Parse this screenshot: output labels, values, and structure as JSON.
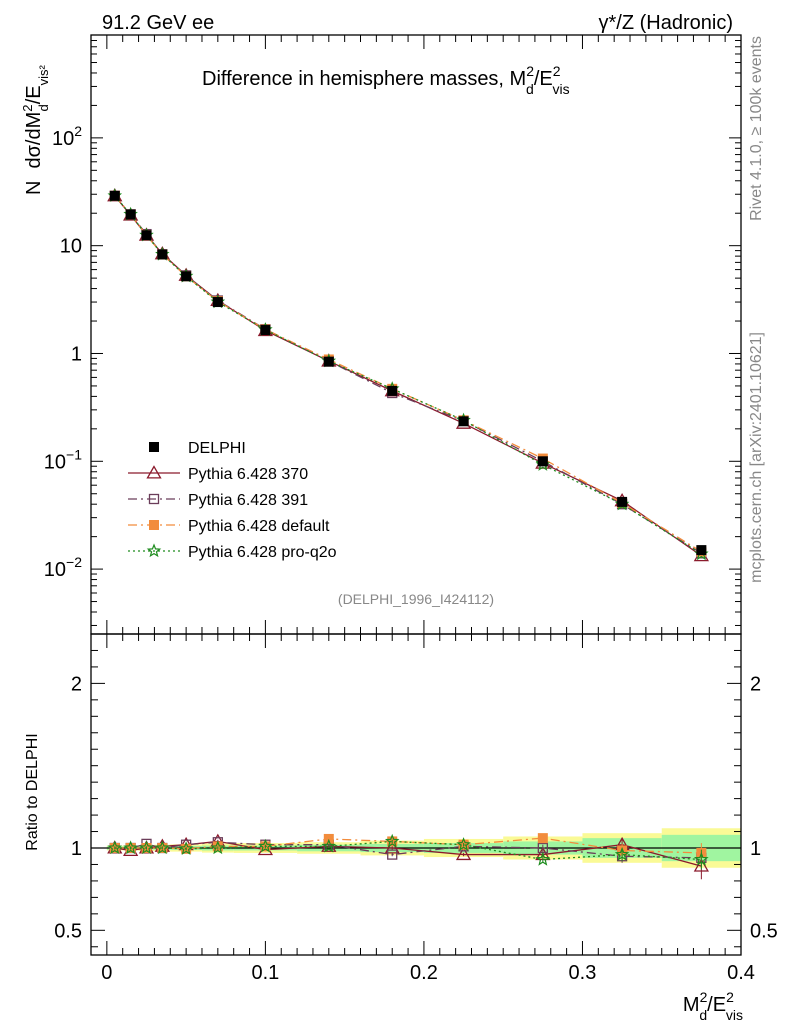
{
  "chart_data": [
    {
      "type": "line",
      "panel": "main",
      "title": "Difference in hemisphere masses, M_d^2/E_vis^2",
      "header_left": "91.2 GeV ee",
      "header_right": "γ*/Z (Hadronic)",
      "watermark_top": "Rivet 4.1.0, ≥ 100k events",
      "watermark_bottom": "mcplots.cern.ch [arXiv:2401.10621]",
      "analysis_id": "(DELPHI_1996_I424112)",
      "ylabel": "N dσ/dM_d^2/E_vis^2",
      "yscale": "log",
      "ylim": [
        0.0025,
        900
      ],
      "xlim": [
        -0.01,
        0.4
      ],
      "y_ticks": [
        {
          "label_base": "10",
          "label_exp": "−2",
          "v": 0.01
        },
        {
          "label_base": "10",
          "label_exp": "−1",
          "v": 0.1
        },
        {
          "label_base": "1",
          "label_exp": "",
          "v": 1
        },
        {
          "label_base": "10",
          "label_exp": "",
          "v": 10
        },
        {
          "label_base": "10",
          "label_exp": "2",
          "v": 100
        }
      ],
      "x": [
        0.005,
        0.015,
        0.025,
        0.035,
        0.05,
        0.07,
        0.1,
        0.14,
        0.18,
        0.225,
        0.275,
        0.325,
        0.375
      ],
      "series": [
        {
          "name": "DELPHI",
          "values": [
            29.0,
            19.5,
            12.5,
            8.3,
            5.2,
            3.0,
            1.65,
            0.84,
            0.45,
            0.235,
            0.1,
            0.042,
            0.015
          ]
        },
        {
          "name": "Pythia 6.428 370",
          "values": [
            29.0,
            19.2,
            12.5,
            8.4,
            5.3,
            3.1,
            1.63,
            0.85,
            0.45,
            0.225,
            0.096,
            0.043,
            0.0133
          ]
        },
        {
          "name": "Pythia 6.428 391",
          "values": [
            29.0,
            19.5,
            12.8,
            8.3,
            5.3,
            3.1,
            1.68,
            0.85,
            0.43,
            0.237,
            0.1,
            0.04,
            0.014
          ]
        },
        {
          "name": "Pythia 6.428 default",
          "values": [
            29.0,
            19.5,
            12.5,
            8.3,
            5.2,
            3.05,
            1.67,
            0.88,
            0.47,
            0.24,
            0.106,
            0.041,
            0.0145
          ]
        },
        {
          "name": "Pythia 6.428 pro-q2o",
          "values": [
            29.0,
            19.5,
            12.5,
            8.3,
            5.2,
            3.0,
            1.66,
            0.85,
            0.47,
            0.24,
            0.093,
            0.04,
            0.0138
          ]
        }
      ]
    },
    {
      "type": "line",
      "panel": "ratio",
      "ylabel": "Ratio to DELPHI",
      "xlabel": "M_d^2/E_vis^2",
      "ylim": [
        0.35,
        2.3
      ],
      "xlim": [
        -0.01,
        0.4
      ],
      "y_tick_labels": [
        {
          "label": "0.5",
          "v": 0.5
        },
        {
          "label": "1",
          "v": 1
        },
        {
          "label": "2",
          "v": 2
        }
      ],
      "x_tick_labels": [
        {
          "label": "0",
          "v": 0
        },
        {
          "label": "0.1",
          "v": 0.1
        },
        {
          "label": "0.2",
          "v": 0.2
        },
        {
          "label": "0.3",
          "v": 0.3
        },
        {
          "label": "0.4",
          "v": 0.4
        }
      ],
      "x": [
        0.005,
        0.015,
        0.025,
        0.035,
        0.05,
        0.07,
        0.1,
        0.14,
        0.18,
        0.225,
        0.275,
        0.325,
        0.375
      ],
      "bands": {
        "bins": [
          0.0,
          0.01,
          0.02,
          0.03,
          0.04,
          0.06,
          0.08,
          0.12,
          0.16,
          0.2,
          0.25,
          0.3,
          0.35,
          0.4
        ],
        "stat_half_width": [
          0.01,
          0.01,
          0.01,
          0.012,
          0.012,
          0.015,
          0.015,
          0.02,
          0.025,
          0.03,
          0.04,
          0.06,
          0.08
        ],
        "total_half_width": [
          0.015,
          0.015,
          0.018,
          0.02,
          0.022,
          0.028,
          0.03,
          0.035,
          0.045,
          0.055,
          0.07,
          0.09,
          0.12
        ]
      },
      "series": [
        {
          "name": "Pythia 6.428 370",
          "values": [
            1.0,
            0.985,
            1.0,
            1.01,
            1.02,
            1.04,
            0.99,
            1.01,
            1.0,
            0.96,
            0.96,
            1.02,
            0.89
          ],
          "err": [
            0.01,
            0.01,
            0.01,
            0.01,
            0.01,
            0.01,
            0.01,
            0.01,
            0.01,
            0.01,
            0.02,
            0.04,
            0.08
          ]
        },
        {
          "name": "Pythia 6.428 391",
          "values": [
            1.0,
            1.0,
            1.025,
            1.0,
            1.02,
            1.035,
            1.02,
            1.02,
            0.96,
            1.01,
            1.0,
            0.95,
            0.94
          ],
          "err": [
            0.01,
            0.01,
            0.01,
            0.01,
            0.01,
            0.01,
            0.01,
            0.01,
            0.01,
            0.01,
            0.02,
            0.04,
            0.06
          ]
        },
        {
          "name": "Pythia 6.428 default",
          "values": [
            1.0,
            1.0,
            1.0,
            1.0,
            0.995,
            1.01,
            1.01,
            1.055,
            1.04,
            1.02,
            1.06,
            0.985,
            0.97
          ],
          "err": [
            0.01,
            0.01,
            0.01,
            0.01,
            0.01,
            0.01,
            0.01,
            0.01,
            0.01,
            0.01,
            0.02,
            0.04,
            0.06
          ]
        },
        {
          "name": "Pythia 6.428 pro-q2o",
          "values": [
            1.0,
            1.0,
            1.0,
            1.0,
            0.995,
            1.0,
            1.01,
            1.01,
            1.04,
            1.02,
            0.93,
            0.96,
            0.93
          ],
          "err": [
            0.01,
            0.01,
            0.01,
            0.01,
            0.01,
            0.01,
            0.01,
            0.01,
            0.01,
            0.01,
            0.02,
            0.04,
            0.06
          ]
        }
      ]
    }
  ],
  "legend": [
    {
      "label": "DELPHI",
      "color": "#000000",
      "marker": "square-filled",
      "dash": ""
    },
    {
      "label": "Pythia 6.428 370",
      "color": "#8b1a2c",
      "marker": "triangle-open",
      "dash": ""
    },
    {
      "label": "Pythia 6.428 391",
      "color": "#6b3d5a",
      "marker": "square-open",
      "dash": "9,4,2,4"
    },
    {
      "label": "Pythia 6.428 default",
      "color": "#f28c3c",
      "marker": "square-filled",
      "dash": "9,4,2,4"
    },
    {
      "label": "Pythia 6.428 pro-q2o",
      "color": "#1e8c1e",
      "marker": "star-open",
      "dash": "2,3"
    }
  ],
  "colors": {
    "band_stat": "#a0f5a0",
    "band_total": "#fafa96"
  }
}
